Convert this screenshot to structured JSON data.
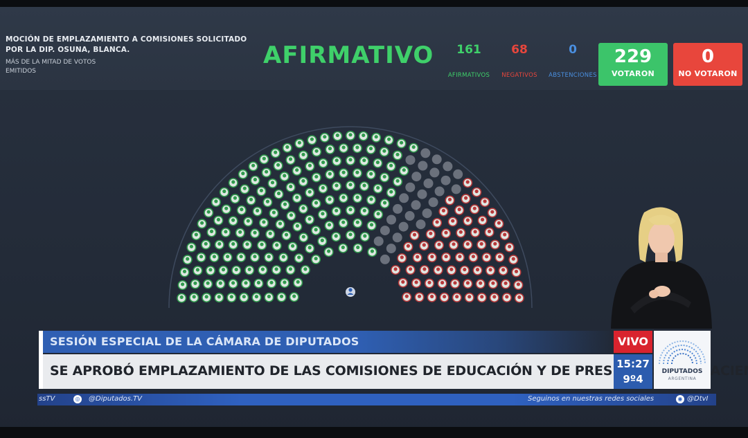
{
  "header": {
    "motion_title": "MOCIÓN DE EMPLAZAMIENTO A COMISIONES SOLICITADO POR LA DIP. OSUNA, BLANCA.",
    "motion_requirement": "MÁS DE LA MITAD DE VOTOS EMITIDOS",
    "result": "AFIRMATIVO",
    "counts": {
      "afirmativos": {
        "value": "161",
        "label": "AFIRMATIVOS"
      },
      "negativos": {
        "value": "68",
        "label": "NEGATIVOS"
      },
      "abstenciones": {
        "value": "0",
        "label": "ABSTENCIONES"
      }
    },
    "votaron": {
      "value": "229",
      "label": "VOTARON"
    },
    "no_votaron": {
      "value": "0",
      "label": "NO VOTARON"
    }
  },
  "colors": {
    "afirmativo": "#3fd06a",
    "negativo": "#e8463c",
    "abstencion": "#4a8fe0",
    "votaron_box": "#3cc46a",
    "no_votaron_box": "#e8463c",
    "seat_green": "#2f9a4c",
    "seat_red": "#b8393a",
    "seat_empty": "#6b717c"
  },
  "hemicycle": {
    "seats_afirmativo": 161,
    "seats_negativo": 68,
    "seats_ausente": 28,
    "president_icon": "president-seat-icon"
  },
  "lower_third": {
    "section": "SESIÓN ESPECIAL DE LA CÁMARA DE DIPUTADOS",
    "headline": "SE APROBÓ EMPLAZAMIENTO DE LAS COMISIONES DE EDUCACIÓN Y DE PRESUPUESTO Y HACIENDA",
    "live": "VIVO",
    "time": "15:27",
    "temperature": "9º4"
  },
  "logo": {
    "name": "DIPUTADOS",
    "country": "ARGENTINA"
  },
  "social_bar": {
    "left_partial": "ssTV",
    "handle_left": "@Diputados.TV",
    "follow": "Seguinos en nuestras redes sociales",
    "handle_right": "@DtvI"
  }
}
